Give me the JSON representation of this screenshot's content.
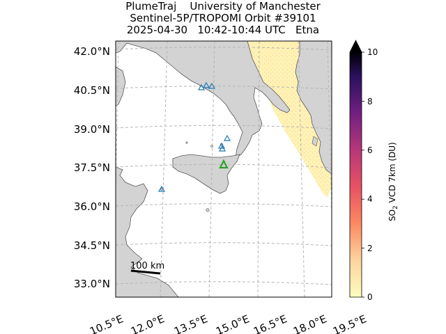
{
  "title": {
    "line1": "PlumeTraj    University of Manchester",
    "line2": "Sentinel-5P/TROPOMI Orbit #39101",
    "line3": "2025-04-30   10:42-10:44 UTC   Etna"
  },
  "map": {
    "lat_labels": [
      "42.0°N",
      "40.5°N",
      "39.0°N",
      "37.5°N",
      "36.0°N",
      "34.5°N",
      "33.0°N"
    ],
    "lon_labels": [
      "10.5°E",
      "12.0°E",
      "13.5°E",
      "15.0°E",
      "16.5°E",
      "18.0°E",
      "19.5°E"
    ],
    "scale_bar_label": "100 km",
    "colors": {
      "land": "#d3d3d3",
      "sea": "#ffffff",
      "gridline": "#b0b0b0",
      "volcano_marker": "#1f77b4",
      "target_volcano_marker": "#2ca02c",
      "so2_low": "#fff3b5"
    }
  },
  "colorbar": {
    "label_main": "SO",
    "label_sub": "2",
    "label_rest": " VCD 7km (DU)",
    "ticks": [
      "0",
      "2",
      "4",
      "6",
      "8",
      "10"
    ],
    "colormap": "magma_r",
    "extend": "max"
  },
  "chart_data": {
    "type": "heatmap",
    "title": "PlumeTraj    University of Manchester / Sentinel-5P/TROPOMI Orbit #39101 / 2025-04-30   10:42-10:44 UTC   Etna",
    "colorbar_label": "SO2 VCD 7km (DU)",
    "colorbar_range": [
      0,
      10
    ],
    "lon_range": [
      10.5,
      19.5
    ],
    "lat_range": [
      33.0,
      42.0
    ],
    "volcanoes": [
      {
        "lon": 15.0,
        "lat": 37.75,
        "type": "target"
      },
      {
        "lon": 14.43,
        "lat": 40.82
      },
      {
        "lon": 14.14,
        "lat": 40.83
      },
      {
        "lon": 13.9,
        "lat": 40.73
      },
      {
        "lon": 15.21,
        "lat": 38.79
      },
      {
        "lon": 14.96,
        "lat": 38.4
      },
      {
        "lon": 14.95,
        "lat": 38.49
      },
      {
        "lon": 12.0,
        "lat": 36.77
      }
    ]
  }
}
